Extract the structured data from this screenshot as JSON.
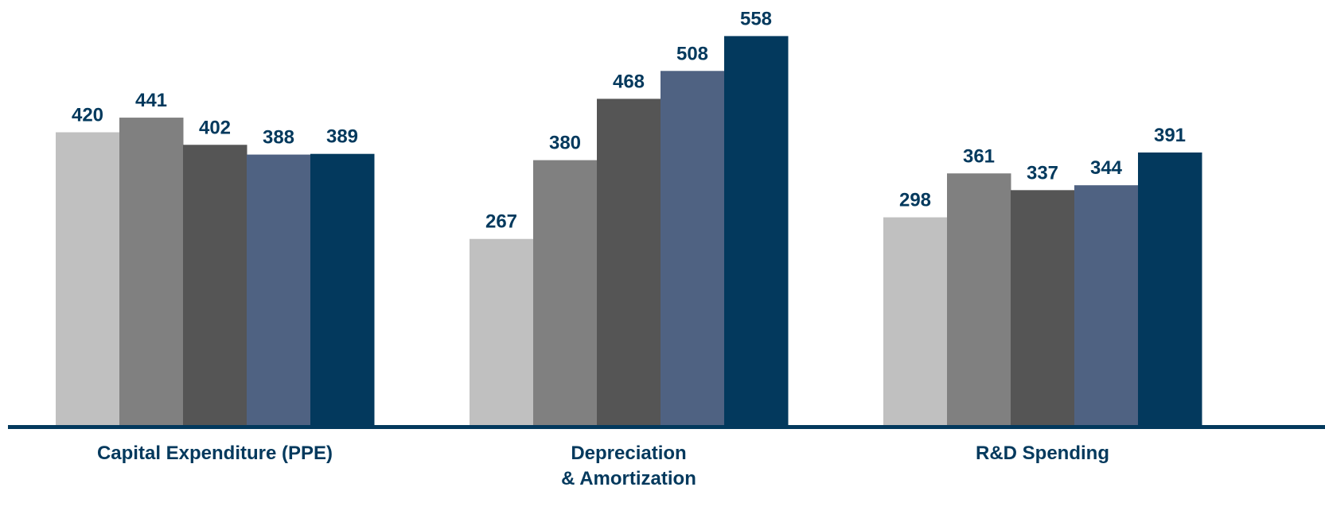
{
  "chart_data": {
    "type": "bar",
    "title": "",
    "xlabel": "",
    "ylabel": "",
    "ylim": [
      0,
      570
    ],
    "grid": false,
    "legend": "none",
    "categories": [
      [
        "Capital Expenditure (PPE)"
      ],
      [
        "Depreciation",
        "& Amortization"
      ],
      [
        "R&D Spending"
      ]
    ],
    "series": [
      {
        "color": "#c0c0c0",
        "values": [
          420,
          267,
          298
        ]
      },
      {
        "color": "#808080",
        "values": [
          441,
          380,
          361
        ]
      },
      {
        "color": "#555555",
        "values": [
          402,
          468,
          337
        ]
      },
      {
        "color": "#4f6282",
        "values": [
          388,
          508,
          344
        ]
      },
      {
        "color": "#03395d",
        "values": [
          389,
          558,
          391
        ]
      }
    ],
    "label_color": "#03395d",
    "axis_color": "#03395d"
  }
}
